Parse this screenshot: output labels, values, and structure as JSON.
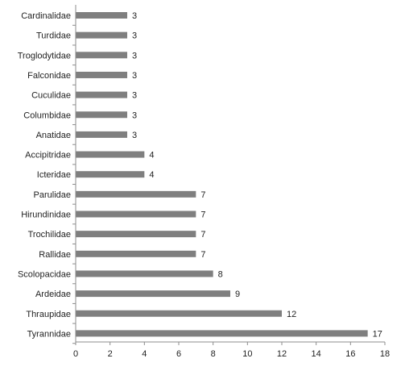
{
  "chart_data": {
    "type": "bar",
    "orientation": "horizontal",
    "categories": [
      "Cardinalidae",
      "Turdidae",
      "Troglodytidae",
      "Falconidae",
      "Cuculidae",
      "Columbidae",
      "Anatidae",
      "Accipitridae",
      "Icteridae",
      "Parulidae",
      "Hirundinidae",
      "Trochilidae",
      "Rallidae",
      "Scolopacidae",
      "Ardeidae",
      "Thraupidae",
      "Tyrannidae"
    ],
    "values": [
      3,
      3,
      3,
      3,
      3,
      3,
      3,
      4,
      4,
      7,
      7,
      7,
      7,
      8,
      9,
      12,
      17
    ],
    "data_labels": [
      "3",
      "3",
      "3",
      "3",
      "3",
      "3",
      "3",
      "4",
      "4",
      "7",
      "7",
      "7",
      "7",
      "8",
      "9",
      "12",
      "17"
    ],
    "x_ticks": [
      "0",
      "2",
      "4",
      "6",
      "8",
      "10",
      "12",
      "14",
      "16",
      "18"
    ],
    "xlim": [
      0,
      18
    ],
    "title": "",
    "xlabel": "",
    "ylabel": "",
    "grid": false,
    "legend": "none",
    "colors": {
      "bar": "#7f7f7f",
      "axis": "#8c8c8c",
      "text": "#222222"
    }
  }
}
